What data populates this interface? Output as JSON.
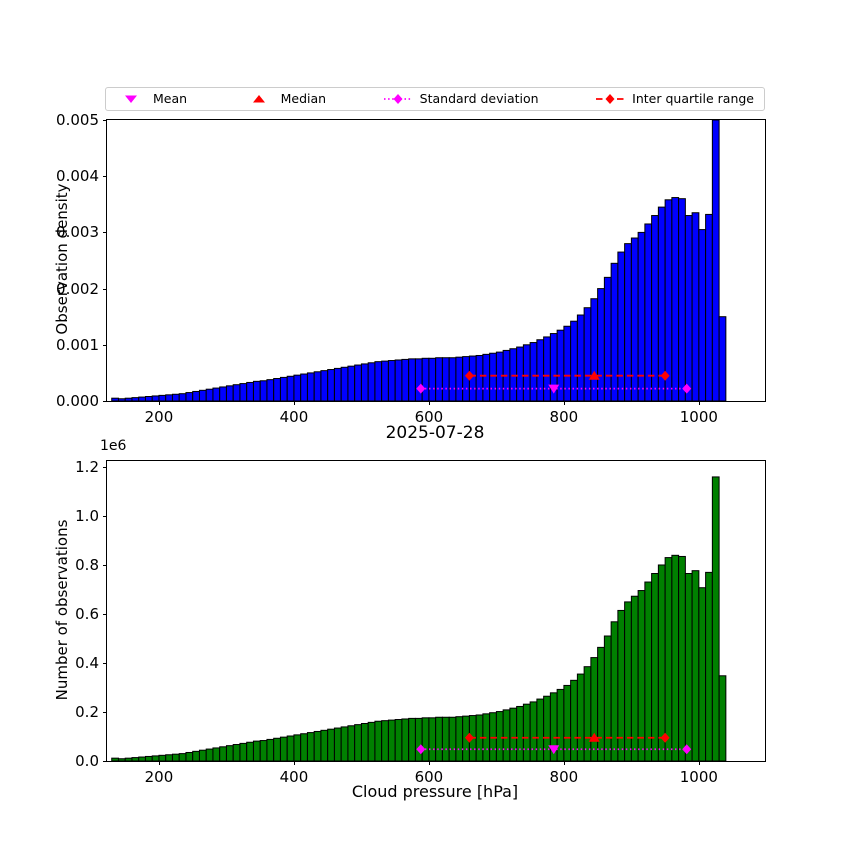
{
  "figure": {
    "xlabel": "Cloud pressure [hPa]"
  },
  "legend": {
    "items": [
      {
        "label": "Mean",
        "marker": "triangle-down",
        "color": "#ff00ff"
      },
      {
        "label": "Median",
        "marker": "triangle-up",
        "color": "#ff0000"
      },
      {
        "label": "Standard deviation",
        "marker": "diamond-dotted",
        "color": "#ff00ff"
      },
      {
        "label": "Inter quartile range",
        "marker": "diamond-dashed",
        "color": "#ff0000"
      }
    ]
  },
  "chart_data": [
    {
      "type": "bar",
      "panel": "top",
      "ylabel": "Observation density",
      "bar_color": "#0000ff",
      "bar_edge_color": "#000000",
      "bin_start": 130,
      "bin_width": 10,
      "xlim": [
        123,
        1098
      ],
      "ylim": [
        0,
        0.005
      ],
      "xticks": [
        200,
        400,
        600,
        800,
        1000
      ],
      "yticks": {
        "values": [
          0,
          0.001,
          0.002,
          0.003,
          0.004,
          0.005
        ],
        "labels": [
          "0.000",
          "0.001",
          "0.002",
          "0.003",
          "0.004",
          "0.005"
        ]
      },
      "values": [
        5e-05,
        4e-05,
        5e-05,
        6e-05,
        7e-05,
        8e-05,
        9e-05,
        0.0001,
        0.00011,
        0.00012,
        0.00013,
        0.00015,
        0.00017,
        0.00019,
        0.00021,
        0.00023,
        0.00025,
        0.00027,
        0.00029,
        0.00031,
        0.00033,
        0.00035,
        0.00036,
        0.00038,
        0.0004,
        0.00042,
        0.00044,
        0.00046,
        0.00048,
        0.0005,
        0.00052,
        0.00054,
        0.00056,
        0.00058,
        0.0006,
        0.00062,
        0.00064,
        0.00066,
        0.00068,
        0.0007,
        0.00071,
        0.00072,
        0.00073,
        0.00074,
        0.00075,
        0.00075,
        0.00076,
        0.00076,
        0.00077,
        0.00077,
        0.00077,
        0.00078,
        0.00079,
        0.0008,
        0.00081,
        0.00083,
        0.00085,
        0.00087,
        0.0009,
        0.00093,
        0.00096,
        0.001,
        0.00104,
        0.00109,
        0.00114,
        0.0012,
        0.00126,
        0.00133,
        0.00142,
        0.00153,
        0.00166,
        0.00182,
        0.002,
        0.0022,
        0.00245,
        0.00265,
        0.0028,
        0.0029,
        0.003,
        0.00315,
        0.0033,
        0.00345,
        0.00358,
        0.00362,
        0.0036,
        0.0033,
        0.00335,
        0.00305,
        0.00332,
        0.005,
        0.0015
      ],
      "stats": {
        "mean_x": 785,
        "median_x": 845,
        "std_range": [
          588,
          982
        ],
        "iqr_range": [
          660,
          950
        ],
        "std_marker_y": 0.00022,
        "iqr_marker_y": 0.00045
      },
      "marker_colors": {
        "mean": "#ff00ff",
        "median": "#ff0000",
        "std": "#ff00ff",
        "iqr": "#ff0000"
      }
    },
    {
      "type": "bar",
      "panel": "bottom",
      "title": "2025-07-28",
      "ylabel": "Number of observations",
      "y_offset_text": "1e6",
      "bar_color": "#008000",
      "bar_edge_color": "#000000",
      "bin_start": 130,
      "bin_width": 10,
      "xlim": [
        123,
        1098
      ],
      "ylim": [
        0,
        1225000
      ],
      "xticks": [
        200,
        400,
        600,
        800,
        1000
      ],
      "yticks": {
        "values": [
          0,
          200000,
          400000,
          600000,
          800000,
          1000000,
          1200000
        ],
        "labels": [
          "0.0",
          "0.2",
          "0.4",
          "0.6",
          "0.8",
          "1.0",
          "1.2"
        ]
      },
      "values": [
        11600,
        9280,
        11600,
        13920,
        16240,
        18560,
        20880,
        23200,
        25520,
        27840,
        30160,
        34800,
        39440,
        44080,
        48720,
        53360,
        58000,
        62640,
        67280,
        71920,
        76560,
        81200,
        83520,
        88160,
        92800,
        97440,
        102080,
        106720,
        111360,
        116000,
        120640,
        125280,
        129920,
        134560,
        139200,
        143840,
        148480,
        153120,
        157760,
        162400,
        164720,
        167040,
        169360,
        171680,
        174000,
        174000,
        176320,
        176320,
        178640,
        178640,
        178640,
        180960,
        183280,
        185600,
        187920,
        192560,
        197200,
        201840,
        208800,
        215760,
        222720,
        232000,
        241280,
        252880,
        264480,
        278400,
        292320,
        308560,
        329440,
        354960,
        385120,
        422240,
        464000,
        510400,
        568400,
        614800,
        649600,
        672800,
        696000,
        730800,
        765600,
        800400,
        830560,
        839840,
        835200,
        765600,
        777200,
        707600,
        770240,
        1160000,
        348000
      ],
      "stats": {
        "mean_x": 785,
        "median_x": 845,
        "std_range": [
          588,
          982
        ],
        "iqr_range": [
          660,
          950
        ],
        "std_marker_y": 48000,
        "iqr_marker_y": 95000
      },
      "marker_colors": {
        "mean": "#ff00ff",
        "median": "#ff0000",
        "std": "#ff00ff",
        "iqr": "#ff0000"
      }
    }
  ]
}
